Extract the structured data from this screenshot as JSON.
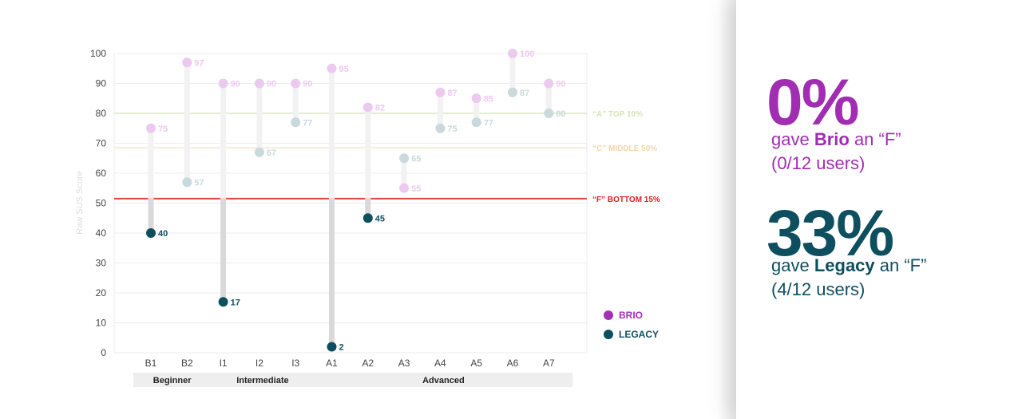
{
  "chart_data": {
    "type": "dumbbell",
    "ylabel": "Raw SUS Score",
    "ylim": [
      0,
      100
    ],
    "yticks": [
      0,
      10,
      20,
      30,
      40,
      50,
      60,
      70,
      80,
      90,
      100
    ],
    "categories": [
      "B1",
      "B2",
      "I1",
      "I2",
      "I3",
      "A1",
      "A2",
      "A3",
      "A4",
      "A5",
      "A6",
      "A7"
    ],
    "groups": [
      {
        "label": "Beginner",
        "members": [
          "B1",
          "B2"
        ]
      },
      {
        "label": "Intermediate",
        "members": [
          "I1",
          "I2",
          "I3"
        ]
      },
      {
        "label": "Advanced",
        "members": [
          "A1",
          "A2",
          "A3",
          "A4",
          "A5",
          "A6",
          "A7"
        ]
      }
    ],
    "series": [
      {
        "name": "BRIO",
        "color": "#a52fb5",
        "values": [
          75,
          97,
          90,
          90,
          90,
          95,
          82,
          55,
          87,
          85,
          100,
          90
        ]
      },
      {
        "name": "LEGACY",
        "color": "#0e4f5f",
        "values": [
          40,
          57,
          17,
          67,
          77,
          2,
          45,
          65,
          75,
          77,
          87,
          80
        ]
      }
    ],
    "reference_lines": [
      {
        "value": 80,
        "label": "“A” TOP 10%",
        "color": "#d6e9b8"
      },
      {
        "value": 68.5,
        "label": "“C” MIDDLE 50%",
        "color": "#f7d7b3"
      },
      {
        "value": 51.5,
        "label": "“F” BOTTOM 15%",
        "color": "#e02020"
      }
    ],
    "legend": "right"
  },
  "stats": {
    "brio": {
      "percent": "0%",
      "pre": "gave ",
      "name": "Brio",
      "post": " an “F”",
      "detail": "(0/12 users)"
    },
    "legacy": {
      "percent": "33%",
      "pre": "gave ",
      "name": "Legacy",
      "post": " an “F”",
      "detail": "(4/12 users)"
    }
  }
}
